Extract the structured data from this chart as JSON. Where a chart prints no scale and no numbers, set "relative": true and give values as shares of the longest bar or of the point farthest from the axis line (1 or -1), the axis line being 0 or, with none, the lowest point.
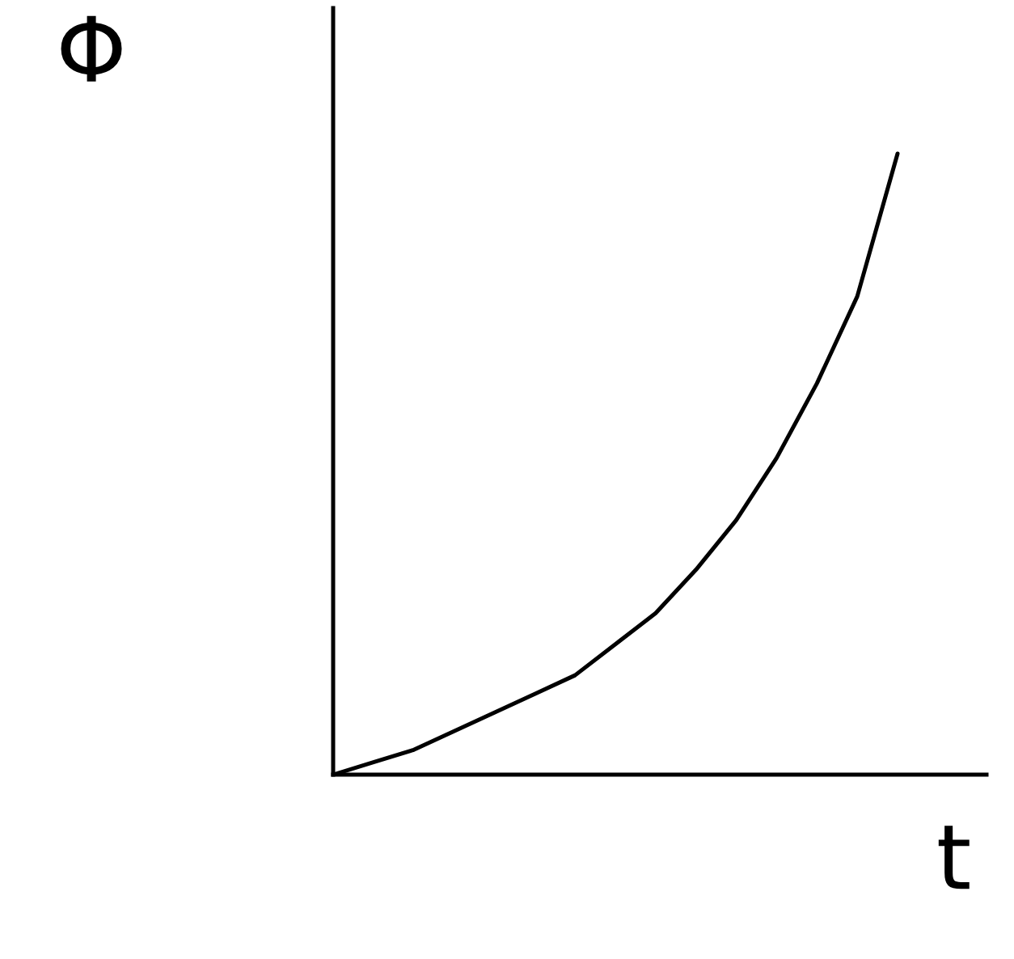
{
  "chart_data": {
    "type": "line",
    "relative": true,
    "xlabel": "t",
    "ylabel": "Φ",
    "categories": [
      null,
      null,
      null,
      null,
      null,
      null,
      null,
      null,
      null,
      null,
      null,
      null,
      null,
      null,
      null
    ],
    "series": [
      {
        "color": "#000000",
        "values": [
          0,
          0.02,
          0.04,
          0.07,
          0.1,
          0.13,
          0.16,
          0.21,
          0.26,
          0.33,
          0.41,
          0.51,
          0.63,
          0.77,
          1
        ]
      }
    ]
  }
}
